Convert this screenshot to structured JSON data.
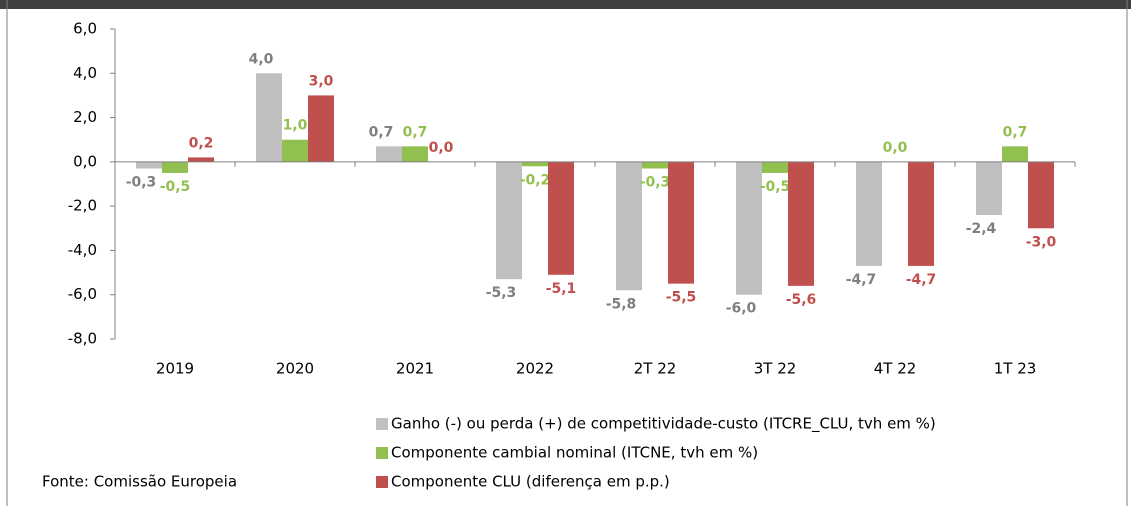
{
  "chart_data": {
    "type": "bar",
    "categories": [
      "2019",
      "2020",
      "2021",
      "2022",
      "2T 22",
      "3T 22",
      "4T 22",
      "1T 23"
    ],
    "series": [
      {
        "name": "Ganho (-) ou perda (+) de competitividade-custo (ITCRE_CLU, tvh em %)",
        "color": "#c0c0c0",
        "label_color": "#7f7f7f",
        "values": [
          -0.3,
          4.0,
          0.7,
          -5.3,
          -5.8,
          -6.0,
          -4.7,
          -2.4
        ],
        "value_labels": [
          "-0,3",
          "4,0",
          "0,7",
          "-5,3",
          "-5,8",
          "-6,0",
          "-4,7",
          "-2,4"
        ]
      },
      {
        "name": "Componente cambial nominal (ITCNE, tvh em %)",
        "color": "#92c050",
        "label_color": "#92c050",
        "values": [
          -0.5,
          1.0,
          0.7,
          -0.2,
          -0.3,
          -0.5,
          0.0,
          0.7
        ],
        "value_labels": [
          "-0,5",
          "1,0",
          "0,7",
          "-0,2",
          "-0,3",
          "-0,5",
          "0,0",
          "0,7"
        ]
      },
      {
        "name": "Componente CLU (diferença em p.p.)",
        "color": "#c0504d",
        "label_color": "#c0504d",
        "values": [
          0.2,
          3.0,
          0.0,
          -5.1,
          -5.5,
          -5.6,
          -4.7,
          -3.0
        ],
        "value_labels": [
          "0,2",
          "3,0",
          "0,0",
          "-5,1",
          "-5,5",
          "-5,6",
          "-4,7",
          "-3,0"
        ]
      }
    ],
    "ylim": [
      -8,
      6
    ],
    "yticks": [
      {
        "value": -8,
        "label": "-8,0"
      },
      {
        "value": -6,
        "label": "-6,0"
      },
      {
        "value": -4,
        "label": "-4,0"
      },
      {
        "value": -2,
        "label": "-2,0"
      },
      {
        "value": 0,
        "label": "0,0"
      },
      {
        "value": 2,
        "label": "2,0"
      },
      {
        "value": 4,
        "label": "4,0"
      },
      {
        "value": 6,
        "label": "6,0"
      }
    ],
    "source": "Fonte: Comissão Europeia"
  }
}
